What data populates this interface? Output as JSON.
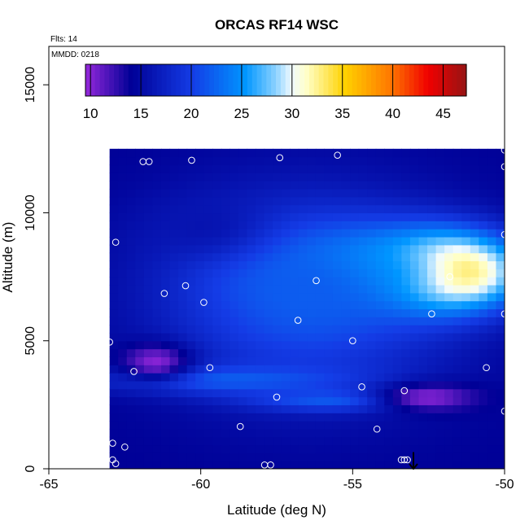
{
  "chart_data": {
    "type": "heatmap",
    "title": "ORCAS RF14 WSC",
    "annotations": {
      "flights": "Flts: 14",
      "date": "MMDD: 0218"
    },
    "xlabel": "Latitude (deg N)",
    "ylabel": "Altitude (m)",
    "xlim": [
      -65,
      -50
    ],
    "ylim": [
      0,
      16500
    ],
    "x_ticks": [
      -65,
      -60,
      -55,
      -50
    ],
    "x_tick_labels": [
      "-65",
      "-60",
      "-55",
      "-50"
    ],
    "y_ticks": [
      0,
      5000,
      10000,
      15000
    ],
    "y_tick_labels": [
      "0",
      "5000",
      "10000",
      "15000"
    ],
    "colorbar": {
      "min": 9.5,
      "max": 47.3,
      "ticks": [
        10,
        15,
        20,
        25,
        30,
        35,
        40,
        45
      ],
      "tick_labels": [
        "10",
        "15",
        "20",
        "25",
        "30",
        "35",
        "40",
        "45"
      ],
      "placement": "top"
    },
    "field_extent": {
      "lat": [
        -63,
        -50
      ],
      "alt": [
        0,
        12500
      ]
    },
    "field_blobs": [
      {
        "lat": -52,
        "alt": 7700,
        "value": 45,
        "sx": 1.6,
        "sy": 1000
      },
      {
        "lat": -54.5,
        "alt": 7800,
        "value": 32,
        "sx": 2.5,
        "sy": 1100
      },
      {
        "lat": -56.5,
        "alt": 6800,
        "value": 22,
        "sx": 3.5,
        "sy": 2800
      },
      {
        "lat": -60,
        "alt": 9500,
        "value": 16,
        "sx": 1.5,
        "sy": 900
      },
      {
        "lat": -59,
        "alt": 3500,
        "value": 22,
        "sx": 3.0,
        "sy": 400
      },
      {
        "lat": -55.5,
        "alt": 2700,
        "value": 22,
        "sx": 2.0,
        "sy": 300
      },
      {
        "lat": -61.5,
        "alt": 4200,
        "value": 10,
        "sx": 0.8,
        "sy": 500
      },
      {
        "lat": -52.5,
        "alt": 2800,
        "value": 10,
        "sx": 1.2,
        "sy": 400
      }
    ],
    "field_background": 14,
    "observations": [
      {
        "lat": -61.9,
        "alt": 12000
      },
      {
        "lat": -61.7,
        "alt": 12000
      },
      {
        "lat": -60.3,
        "alt": 12050
      },
      {
        "lat": -57.4,
        "alt": 12150
      },
      {
        "lat": -55.5,
        "alt": 12250
      },
      {
        "lat": -50.0,
        "alt": 12450
      },
      {
        "lat": -50.0,
        "alt": 11800
      },
      {
        "lat": -50.0,
        "alt": 9150
      },
      {
        "lat": -62.8,
        "alt": 8850
      },
      {
        "lat": -60.5,
        "alt": 7150
      },
      {
        "lat": -61.2,
        "alt": 6850
      },
      {
        "lat": -59.9,
        "alt": 6500
      },
      {
        "lat": -56.2,
        "alt": 7350
      },
      {
        "lat": -51.8,
        "alt": 7500
      },
      {
        "lat": -52.4,
        "alt": 6050
      },
      {
        "lat": -50.0,
        "alt": 6050
      },
      {
        "lat": -56.8,
        "alt": 5800
      },
      {
        "lat": -55.0,
        "alt": 5000
      },
      {
        "lat": -63.0,
        "alt": 4950
      },
      {
        "lat": -62.2,
        "alt": 3800
      },
      {
        "lat": -59.7,
        "alt": 3950
      },
      {
        "lat": -50.6,
        "alt": 3950
      },
      {
        "lat": -54.7,
        "alt": 3200
      },
      {
        "lat": -53.3,
        "alt": 3050
      },
      {
        "lat": -57.5,
        "alt": 2800
      },
      {
        "lat": -50.0,
        "alt": 2250
      },
      {
        "lat": -58.7,
        "alt": 1650
      },
      {
        "lat": -54.2,
        "alt": 1550
      },
      {
        "lat": -62.9,
        "alt": 1000
      },
      {
        "lat": -62.5,
        "alt": 850
      },
      {
        "lat": -62.9,
        "alt": 350
      },
      {
        "lat": -62.8,
        "alt": 200
      },
      {
        "lat": -57.9,
        "alt": 150
      },
      {
        "lat": -57.7,
        "alt": 150
      },
      {
        "lat": -53.4,
        "alt": 350
      },
      {
        "lat": -53.3,
        "alt": 350
      },
      {
        "lat": -53.2,
        "alt": 350
      }
    ],
    "arrow_marker": {
      "lat": -53.0,
      "alt_from": 650,
      "alt_to": 0
    },
    "grid": false
  }
}
